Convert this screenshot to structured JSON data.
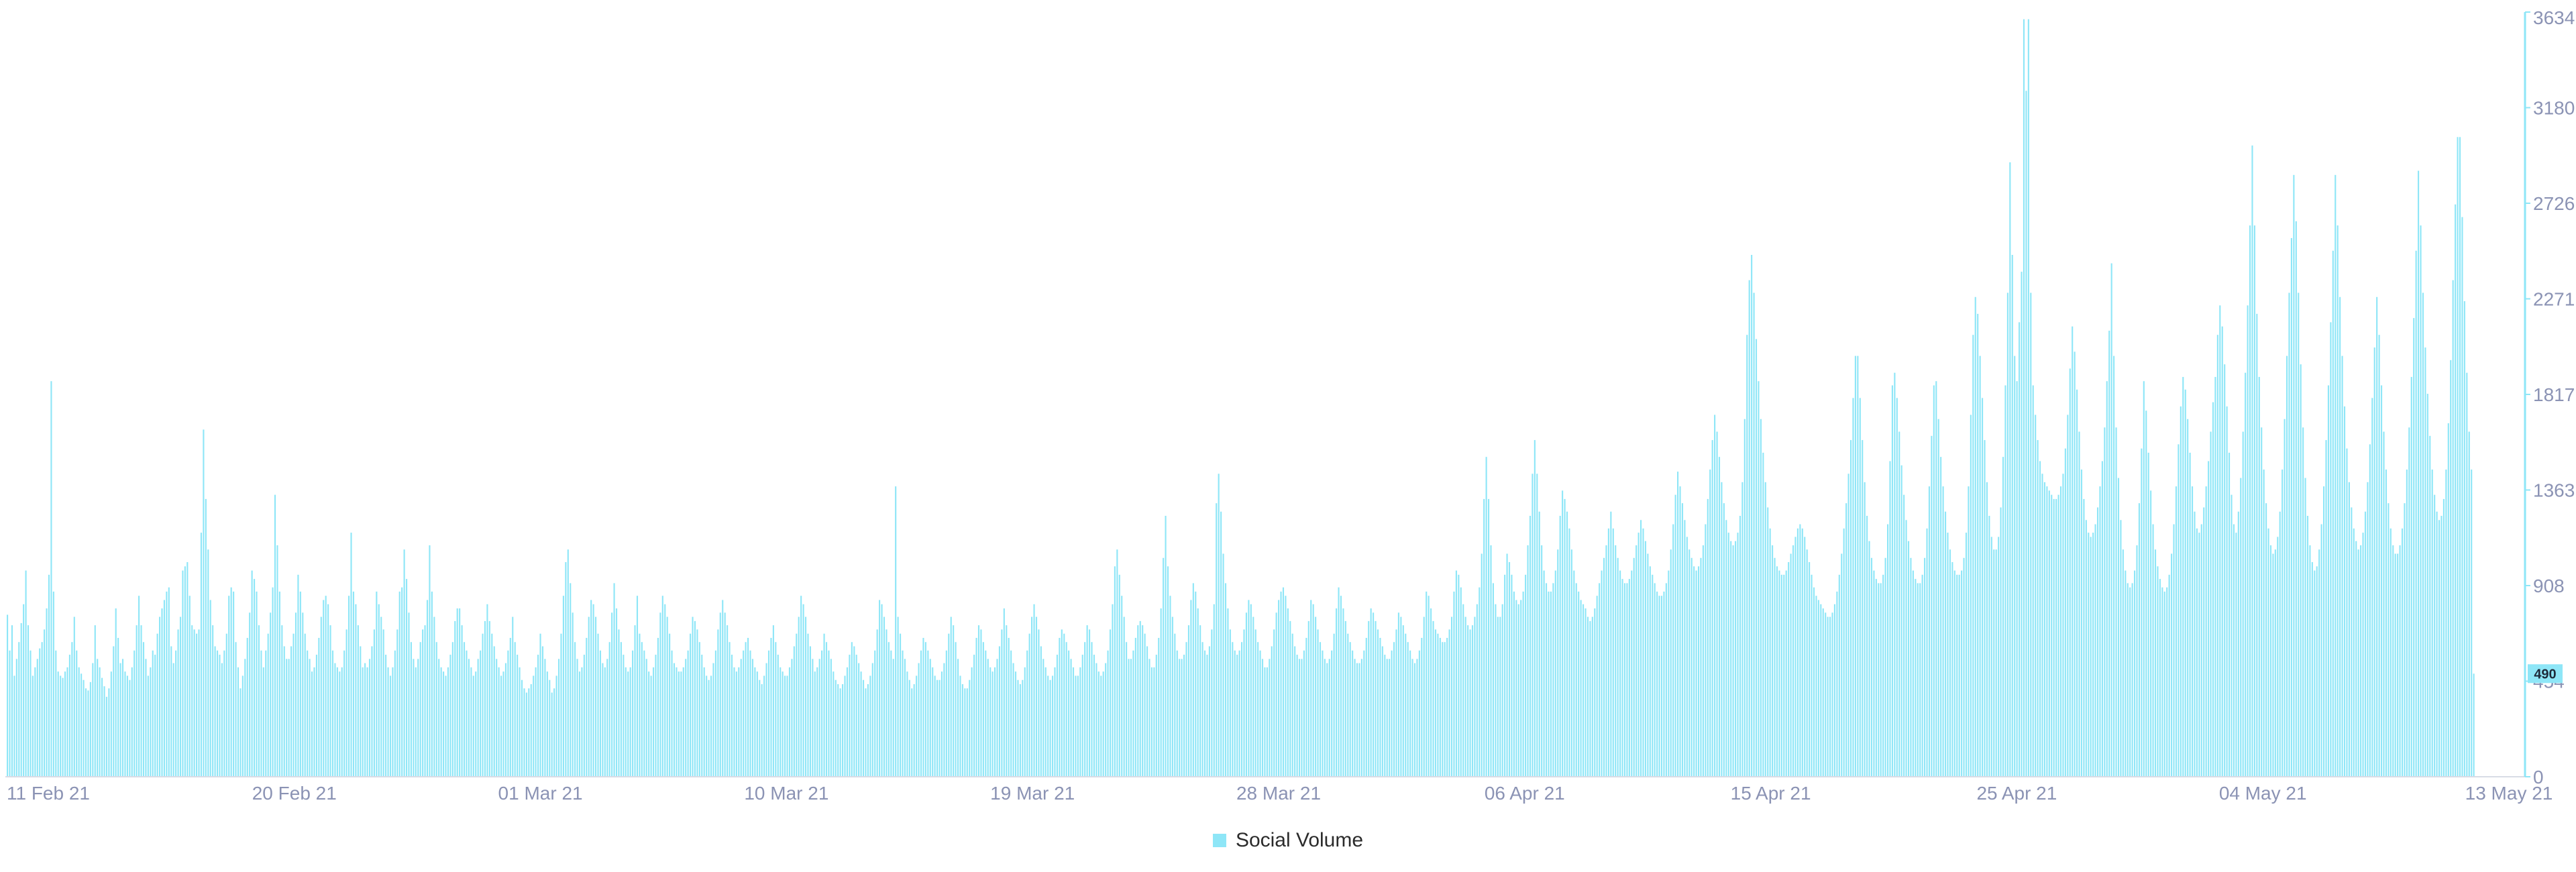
{
  "chart_data": {
    "type": "bar",
    "series": [
      {
        "name": "Social Volume",
        "color": "#8ee6f7",
        "values": [
          770,
          600,
          720,
          480,
          560,
          640,
          730,
          820,
          980,
          720,
          600,
          480,
          520,
          560,
          610,
          640,
          700,
          800,
          960,
          1880,
          880,
          600,
          500,
          480,
          470,
          500,
          520,
          580,
          640,
          760,
          600,
          520,
          490,
          460,
          420,
          410,
          450,
          540,
          720,
          560,
          520,
          470,
          430,
          380,
          420,
          500,
          620,
          800,
          660,
          540,
          560,
          500,
          480,
          460,
          520,
          600,
          720,
          860,
          720,
          640,
          560,
          480,
          520,
          600,
          580,
          680,
          760,
          800,
          840,
          880,
          900,
          620,
          540,
          600,
          700,
          760,
          980,
          1000,
          1020,
          860,
          720,
          700,
          680,
          700,
          1160,
          1650,
          1320,
          1080,
          840,
          720,
          620,
          600,
          580,
          540,
          600,
          680,
          860,
          900,
          880,
          640,
          520,
          420,
          480,
          560,
          660,
          780,
          980,
          940,
          880,
          720,
          600,
          520,
          600,
          680,
          780,
          900,
          1340,
          1100,
          880,
          720,
          620,
          560,
          560,
          620,
          680,
          780,
          960,
          880,
          780,
          680,
          600,
          560,
          500,
          520,
          580,
          660,
          760,
          840,
          860,
          820,
          720,
          600,
          540,
          520,
          500,
          520,
          600,
          700,
          860,
          1160,
          880,
          820,
          720,
          620,
          520,
          540,
          520,
          560,
          620,
          700,
          880,
          820,
          760,
          700,
          580,
          520,
          480,
          520,
          600,
          700,
          880,
          900,
          1080,
          940,
          780,
          640,
          560,
          520,
          560,
          640,
          700,
          720,
          840,
          1100,
          880,
          760,
          640,
          560,
          520,
          500,
          480,
          520,
          580,
          640,
          740,
          800,
          800,
          720,
          640,
          600,
          560,
          520,
          480,
          500,
          560,
          600,
          680,
          740,
          820,
          740,
          680,
          620,
          560,
          520,
          480,
          500,
          540,
          600,
          660,
          760,
          640,
          580,
          520,
          460,
          420,
          400,
          420,
          440,
          480,
          520,
          580,
          680,
          620,
          560,
          500,
          460,
          400,
          420,
          480,
          560,
          680,
          860,
          1020,
          1080,
          920,
          780,
          640,
          560,
          500,
          520,
          580,
          660,
          760,
          840,
          820,
          760,
          680,
          600,
          540,
          520,
          560,
          640,
          780,
          920,
          800,
          700,
          640,
          580,
          520,
          500,
          520,
          600,
          720,
          860,
          680,
          640,
          600,
          560,
          500,
          480,
          520,
          580,
          660,
          780,
          860,
          820,
          760,
          680,
          600,
          540,
          520,
          500,
          500,
          520,
          560,
          600,
          680,
          760,
          740,
          700,
          640,
          580,
          520,
          480,
          460,
          480,
          540,
          600,
          700,
          780,
          840,
          780,
          720,
          640,
          580,
          520,
          500,
          520,
          560,
          600,
          640,
          660,
          600,
          560,
          520,
          500,
          460,
          440,
          480,
          540,
          600,
          660,
          720,
          640,
          580,
          520,
          500,
          480,
          480,
          520,
          560,
          620,
          680,
          760,
          860,
          820,
          760,
          680,
          620,
          560,
          500,
          520,
          560,
          600,
          680,
          640,
          600,
          560,
          500,
          460,
          440,
          420,
          440,
          480,
          520,
          580,
          640,
          620,
          580,
          540,
          500,
          460,
          420,
          440,
          480,
          540,
          600,
          700,
          840,
          820,
          760,
          700,
          640,
          600,
          560,
          1380,
          760,
          680,
          600,
          560,
          500,
          460,
          420,
          440,
          480,
          540,
          600,
          660,
          640,
          600,
          560,
          520,
          480,
          460,
          460,
          500,
          540,
          600,
          680,
          760,
          720,
          640,
          560,
          480,
          440,
          420,
          420,
          460,
          520,
          580,
          660,
          720,
          700,
          640,
          600,
          560,
          520,
          500,
          520,
          560,
          620,
          700,
          800,
          720,
          660,
          600,
          540,
          500,
          460,
          440,
          460,
          520,
          600,
          680,
          760,
          820,
          760,
          700,
          620,
          560,
          520,
          480,
          460,
          480,
          520,
          580,
          660,
          700,
          680,
          640,
          600,
          560,
          520,
          480,
          480,
          520,
          580,
          640,
          720,
          700,
          640,
          580,
          540,
          500,
          480,
          500,
          540,
          600,
          700,
          820,
          1000,
          1080,
          960,
          860,
          760,
          640,
          560,
          560,
          600,
          660,
          720,
          740,
          720,
          680,
          620,
          560,
          520,
          520,
          580,
          660,
          800,
          1040,
          1240,
          1000,
          860,
          760,
          680,
          600,
          560,
          560,
          580,
          640,
          720,
          840,
          920,
          880,
          800,
          720,
          640,
          600,
          580,
          620,
          700,
          820,
          1300,
          1440,
          1260,
          1060,
          920,
          800,
          700,
          640,
          600,
          580,
          600,
          640,
          700,
          780,
          840,
          820,
          760,
          700,
          640,
          600,
          560,
          520,
          520,
          560,
          620,
          700,
          780,
          840,
          880,
          900,
          860,
          800,
          740,
          680,
          620,
          580,
          560,
          560,
          600,
          660,
          740,
          840,
          820,
          760,
          700,
          640,
          600,
          560,
          540,
          560,
          600,
          680,
          800,
          900,
          860,
          800,
          740,
          680,
          640,
          600,
          560,
          540,
          540,
          560,
          600,
          660,
          740,
          800,
          780,
          740,
          700,
          660,
          620,
          580,
          560,
          560,
          600,
          640,
          700,
          780,
          760,
          720,
          680,
          640,
          600,
          560,
          540,
          560,
          600,
          660,
          760,
          880,
          860,
          800,
          740,
          700,
          680,
          660,
          640,
          640,
          660,
          700,
          760,
          880,
          980,
          960,
          900,
          820,
          760,
          720,
          700,
          720,
          760,
          820,
          900,
          1060,
          1320,
          1520,
          1320,
          1100,
          920,
          820,
          760,
          760,
          820,
          960,
          1060,
          1020,
          960,
          880,
          840,
          820,
          840,
          880,
          960,
          1100,
          1240,
          1440,
          1600,
          1440,
          1260,
          1100,
          980,
          920,
          880,
          880,
          920,
          980,
          1080,
          1240,
          1360,
          1320,
          1260,
          1180,
          1080,
          980,
          920,
          880,
          840,
          820,
          800,
          760,
          740,
          760,
          800,
          860,
          920,
          980,
          1040,
          1100,
          1180,
          1260,
          1180,
          1100,
          1040,
          980,
          940,
          920,
          920,
          940,
          980,
          1040,
          1100,
          1160,
          1220,
          1180,
          1120,
          1060,
          1000,
          960,
          920,
          880,
          860,
          860,
          880,
          920,
          980,
          1080,
          1200,
          1340,
          1450,
          1380,
          1300,
          1220,
          1140,
          1080,
          1040,
          1000,
          980,
          1000,
          1040,
          1100,
          1200,
          1320,
          1460,
          1600,
          1720,
          1640,
          1520,
          1400,
          1300,
          1220,
          1160,
          1120,
          1100,
          1120,
          1160,
          1240,
          1400,
          1700,
          2100,
          2360,
          2480,
          2300,
          2080,
          1880,
          1700,
          1540,
          1400,
          1280,
          1180,
          1100,
          1040,
          1000,
          980,
          960,
          960,
          980,
          1020,
          1060,
          1100,
          1140,
          1180,
          1200,
          1180,
          1140,
          1080,
          1020,
          960,
          900,
          860,
          840,
          820,
          800,
          780,
          760,
          760,
          780,
          820,
          880,
          960,
          1060,
          1180,
          1300,
          1440,
          1600,
          1800,
          2000,
          2000,
          1800,
          1600,
          1400,
          1240,
          1120,
          1040,
          980,
          940,
          920,
          920,
          960,
          1040,
          1200,
          1500,
          1860,
          1920,
          1800,
          1640,
          1480,
          1340,
          1220,
          1120,
          1040,
          980,
          940,
          920,
          920,
          960,
          1040,
          1180,
          1380,
          1620,
          1860,
          1880,
          1700,
          1520,
          1380,
          1260,
          1160,
          1080,
          1020,
          980,
          960,
          960,
          980,
          1040,
          1160,
          1380,
          1720,
          2100,
          2280,
          2200,
          2000,
          1800,
          1600,
          1400,
          1240,
          1140,
          1080,
          1080,
          1140,
          1280,
          1520,
          1860,
          2300,
          2920,
          2480,
          2000,
          1880,
          2160,
          2400,
          3600,
          3260,
          3600,
          2300,
          1860,
          1720,
          1600,
          1500,
          1440,
          1400,
          1380,
          1360,
          1340,
          1320,
          1320,
          1340,
          1380,
          1440,
          1560,
          1720,
          1940,
          2140,
          2020,
          1840,
          1640,
          1460,
          1320,
          1220,
          1160,
          1140,
          1160,
          1200,
          1280,
          1380,
          1500,
          1660,
          1880,
          2120,
          2440,
          2000,
          1660,
          1420,
          1220,
          1080,
          980,
          920,
          900,
          920,
          980,
          1100,
          1300,
          1560,
          1880,
          1740,
          1540,
          1360,
          1200,
          1080,
          1000,
          940,
          900,
          880,
          900,
          960,
          1060,
          1200,
          1380,
          1580,
          1760,
          1900,
          1840,
          1700,
          1540,
          1380,
          1260,
          1180,
          1160,
          1200,
          1280,
          1380,
          1500,
          1640,
          1780,
          1900,
          2100,
          2240,
          2140,
          1960,
          1760,
          1540,
          1340,
          1200,
          1160,
          1260,
          1420,
          1640,
          1920,
          2240,
          2620,
          3000,
          2620,
          2200,
          1900,
          1660,
          1460,
          1300,
          1180,
          1100,
          1060,
          1080,
          1140,
          1260,
          1460,
          1700,
          2000,
          2300,
          2560,
          2860,
          2640,
          2300,
          1960,
          1660,
          1420,
          1240,
          1100,
          1020,
          980,
          1000,
          1080,
          1200,
          1380,
          1600,
          1860,
          2160,
          2500,
          2860,
          2620,
          2280,
          2000,
          1760,
          1560,
          1400,
          1280,
          1180,
          1120,
          1080,
          1100,
          1160,
          1260,
          1400,
          1580,
          1800,
          2040,
          2280,
          2100,
          1860,
          1640,
          1460,
          1300,
          1180,
          1100,
          1060,
          1060,
          1100,
          1180,
          1300,
          1460,
          1660,
          1900,
          2180,
          2500,
          2880,
          2620,
          2300,
          2040,
          1820,
          1620,
          1460,
          1340,
          1260,
          1220,
          1240,
          1320,
          1460,
          1680,
          1980,
          2360,
          2720,
          3040,
          3040,
          2660,
          2260,
          1920,
          1640,
          1460,
          490
        ]
      }
    ],
    "x_tick_labels": [
      "11 Feb 21",
      "20 Feb 21",
      "01 Mar 21",
      "10 Mar 21",
      "19 Mar 21",
      "28 Mar 21",
      "06 Apr 21",
      "15 Apr 21",
      "25 Apr 21",
      "04 May 21",
      "13 May 21"
    ],
    "y_tick_labels": [
      "0",
      "454",
      "908",
      "1363",
      "1817",
      "2271",
      "2726",
      "3180",
      "3634"
    ],
    "ylim": [
      0,
      3634
    ],
    "last_value_label": "490",
    "legend": {
      "position": "bottom-center",
      "items": [
        "Social Volume"
      ]
    },
    "grid": false
  }
}
